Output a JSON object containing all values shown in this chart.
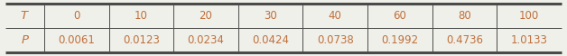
{
  "row1_label": "T",
  "row2_label": "P",
  "t_values": [
    "0",
    "10",
    "20",
    "30",
    "40",
    "60",
    "80",
    "100"
  ],
  "p_values": [
    "0.0061",
    "0.0123",
    "0.0234",
    "0.0424",
    "0.0738",
    "0.1992",
    "0.4736",
    "1.0133"
  ],
  "text_color": "#c0703a",
  "border_color": "#4a4a4a",
  "bg_color": "#f0f0eb",
  "thick_lw": 2.2,
  "thin_lw": 0.7,
  "label_fontsize": 9.5,
  "data_fontsize": 8.5,
  "fig_width": 6.28,
  "fig_height": 0.62,
  "dpi": 100
}
